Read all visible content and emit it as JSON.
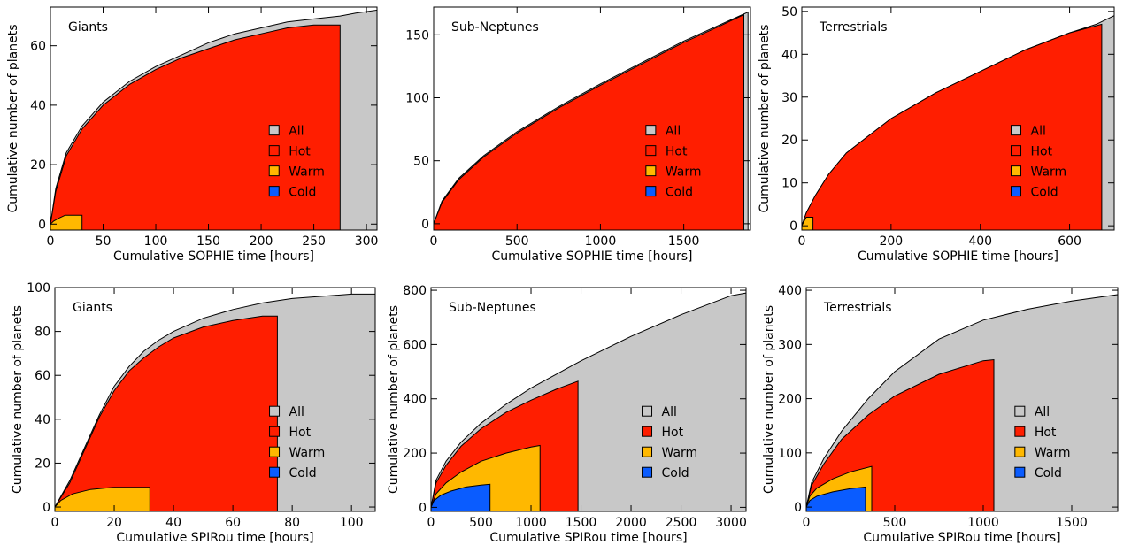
{
  "colors": {
    "all": "#c8c8c8",
    "hot": "#ff1e00",
    "warm": "#ffb800",
    "cold": "#0a5cff",
    "frame": "#000000"
  },
  "legend_labels": [
    "All",
    "Hot",
    "Warm",
    "Cold"
  ],
  "chart_data": [
    {
      "type": "area",
      "panel_title": "Giants",
      "xlabel": "Cumulative SOPHIE time [hours]",
      "ylabel": "Cumulative number of planets",
      "xlim": [
        0,
        310
      ],
      "ylim": [
        -2,
        73
      ],
      "legend_position": "lower-right",
      "xticks": [
        0,
        50,
        100,
        150,
        200,
        250,
        300
      ],
      "yticks": [
        0,
        20,
        40,
        60
      ],
      "series": [
        {
          "name": "All",
          "x_end": 310,
          "points": [
            [
              0,
              0
            ],
            [
              5,
              12
            ],
            [
              15,
              24
            ],
            [
              30,
              33
            ],
            [
              50,
              41
            ],
            [
              75,
              48
            ],
            [
              100,
              53
            ],
            [
              125,
              57
            ],
            [
              150,
              61
            ],
            [
              175,
              64
            ],
            [
              200,
              66
            ],
            [
              225,
              68
            ],
            [
              250,
              69
            ],
            [
              275,
              70
            ],
            [
              290,
              71
            ],
            [
              310,
              72
            ]
          ]
        },
        {
          "name": "Hot",
          "x_end": 275,
          "points": [
            [
              0,
              0
            ],
            [
              5,
              11
            ],
            [
              15,
              23
            ],
            [
              30,
              32
            ],
            [
              50,
              40
            ],
            [
              75,
              47
            ],
            [
              100,
              52
            ],
            [
              125,
              56
            ],
            [
              150,
              59
            ],
            [
              175,
              62
            ],
            [
              200,
              64
            ],
            [
              225,
              66
            ],
            [
              250,
              67
            ],
            [
              275,
              67
            ]
          ]
        },
        {
          "name": "Warm",
          "x_end": 30,
          "points": [
            [
              0,
              0
            ],
            [
              3,
              1
            ],
            [
              8,
              2
            ],
            [
              14,
              3
            ],
            [
              30,
              3
            ]
          ]
        }
      ]
    },
    {
      "type": "area",
      "panel_title": "Sub-Neptunes",
      "xlabel": "Cumulative SOPHIE time [hours]",
      "ylabel": "",
      "xlim": [
        0,
        1900
      ],
      "ylim": [
        -5,
        172
      ],
      "legend_position": "lower-right",
      "xticks": [
        0,
        500,
        1000,
        1500
      ],
      "yticks": [
        0,
        50,
        100,
        150
      ],
      "series": [
        {
          "name": "All",
          "x_end": 1885,
          "points": [
            [
              0,
              0
            ],
            [
              50,
              18
            ],
            [
              150,
              36
            ],
            [
              300,
              54
            ],
            [
              500,
              73
            ],
            [
              750,
              93
            ],
            [
              1000,
              111
            ],
            [
              1250,
              128
            ],
            [
              1500,
              145
            ],
            [
              1700,
              157
            ],
            [
              1885,
              168
            ]
          ]
        },
        {
          "name": "Hot",
          "x_end": 1860,
          "points": [
            [
              0,
              0
            ],
            [
              50,
              17
            ],
            [
              150,
              35
            ],
            [
              300,
              53
            ],
            [
              500,
              72
            ],
            [
              750,
              92
            ],
            [
              1000,
              110
            ],
            [
              1250,
              127
            ],
            [
              1500,
              144
            ],
            [
              1700,
              156
            ],
            [
              1860,
              166
            ]
          ]
        }
      ]
    },
    {
      "type": "area",
      "panel_title": "Terrestrials",
      "xlabel": "Cumulative SOPHIE time [hours]",
      "ylabel": "Cumulative number of planets",
      "xlim": [
        0,
        700
      ],
      "ylim": [
        -1,
        51
      ],
      "legend_position": "lower-right",
      "xticks": [
        0,
        200,
        400,
        600
      ],
      "yticks": [
        0,
        10,
        20,
        30,
        40,
        50
      ],
      "series": [
        {
          "name": "All",
          "x_end": 700,
          "points": [
            [
              0,
              0
            ],
            [
              10,
              3
            ],
            [
              30,
              7
            ],
            [
              60,
              12
            ],
            [
              100,
              17
            ],
            [
              150,
              21
            ],
            [
              200,
              25
            ],
            [
              300,
              31
            ],
            [
              400,
              36
            ],
            [
              500,
              41
            ],
            [
              600,
              45
            ],
            [
              660,
              47
            ],
            [
              700,
              49
            ]
          ]
        },
        {
          "name": "Hot",
          "x_end": 672,
          "points": [
            [
              0,
              0
            ],
            [
              10,
              3
            ],
            [
              30,
              7
            ],
            [
              60,
              12
            ],
            [
              100,
              17
            ],
            [
              150,
              21
            ],
            [
              200,
              25
            ],
            [
              300,
              31
            ],
            [
              400,
              36
            ],
            [
              500,
              41
            ],
            [
              600,
              45
            ],
            [
              672,
              47
            ]
          ]
        },
        {
          "name": "Warm",
          "x_end": 25,
          "points": [
            [
              0,
              0
            ],
            [
              5,
              1
            ],
            [
              10,
              2
            ],
            [
              25,
              2
            ]
          ]
        }
      ]
    },
    {
      "type": "area",
      "panel_title": "Giants",
      "xlabel": "Cumulative SPIRou time [hours]",
      "ylabel": "Cumulative number of planets",
      "xlim": [
        0,
        108
      ],
      "ylim": [
        -2,
        100
      ],
      "legend_position": "lower-right",
      "xticks": [
        0,
        20,
        40,
        60,
        80,
        100
      ],
      "yticks": [
        0,
        20,
        40,
        60,
        80,
        100
      ],
      "series": [
        {
          "name": "All",
          "x_end": 108,
          "points": [
            [
              0,
              0
            ],
            [
              5,
              12
            ],
            [
              10,
              27
            ],
            [
              15,
              42
            ],
            [
              20,
              55
            ],
            [
              25,
              64
            ],
            [
              30,
              71
            ],
            [
              35,
              76
            ],
            [
              40,
              80
            ],
            [
              50,
              86
            ],
            [
              60,
              90
            ],
            [
              70,
              93
            ],
            [
              80,
              95
            ],
            [
              90,
              96
            ],
            [
              100,
              97
            ],
            [
              108,
              97
            ]
          ]
        },
        {
          "name": "Hot",
          "x_end": 75,
          "points": [
            [
              0,
              0
            ],
            [
              5,
              11
            ],
            [
              10,
              26
            ],
            [
              15,
              41
            ],
            [
              20,
              53
            ],
            [
              25,
              62
            ],
            [
              30,
              68
            ],
            [
              35,
              73
            ],
            [
              40,
              77
            ],
            [
              50,
              82
            ],
            [
              60,
              85
            ],
            [
              70,
              87
            ],
            [
              75,
              87
            ]
          ]
        },
        {
          "name": "Warm",
          "x_end": 32,
          "points": [
            [
              0,
              0
            ],
            [
              2,
              3
            ],
            [
              6,
              6
            ],
            [
              12,
              8
            ],
            [
              20,
              9
            ],
            [
              32,
              9
            ]
          ]
        }
      ]
    },
    {
      "type": "area",
      "panel_title": "Sub-Neptunes",
      "xlabel": "Cumulative SPIRou time [hours]",
      "ylabel": "Cumulative number of planets",
      "xlim": [
        0,
        3150
      ],
      "ylim": [
        -15,
        810
      ],
      "legend_position": "lower-right",
      "xticks": [
        0,
        500,
        1000,
        1500,
        2000,
        2500,
        3000
      ],
      "yticks": [
        0,
        200,
        400,
        600,
        800
      ],
      "series": [
        {
          "name": "All",
          "x_end": 3150,
          "points": [
            [
              0,
              0
            ],
            [
              50,
              100
            ],
            [
              150,
              170
            ],
            [
              300,
              240
            ],
            [
              500,
              310
            ],
            [
              750,
              380
            ],
            [
              1000,
              440
            ],
            [
              1500,
              540
            ],
            [
              2000,
              630
            ],
            [
              2500,
              710
            ],
            [
              3000,
              780
            ],
            [
              3150,
              790
            ]
          ]
        },
        {
          "name": "Hot",
          "x_end": 1470,
          "points": [
            [
              0,
              0
            ],
            [
              50,
              90
            ],
            [
              150,
              155
            ],
            [
              300,
              225
            ],
            [
              500,
              290
            ],
            [
              750,
              350
            ],
            [
              1000,
              395
            ],
            [
              1250,
              435
            ],
            [
              1470,
              465
            ]
          ]
        },
        {
          "name": "Warm",
          "x_end": 1090,
          "points": [
            [
              0,
              0
            ],
            [
              50,
              50
            ],
            [
              150,
              90
            ],
            [
              300,
              130
            ],
            [
              500,
              170
            ],
            [
              750,
              200
            ],
            [
              1000,
              222
            ],
            [
              1090,
              228
            ]
          ]
        },
        {
          "name": "Cold",
          "x_end": 590,
          "points": [
            [
              0,
              0
            ],
            [
              30,
              25
            ],
            [
              100,
              45
            ],
            [
              200,
              60
            ],
            [
              350,
              75
            ],
            [
              500,
              82
            ],
            [
              590,
              85
            ]
          ]
        }
      ]
    },
    {
      "type": "area",
      "panel_title": "Terrestrials",
      "xlabel": "Cumulative SPIRou time [hours]",
      "ylabel": "Cumulative number of planets",
      "xlim": [
        0,
        1760
      ],
      "ylim": [
        -8,
        405
      ],
      "legend_position": "lower-right",
      "xticks": [
        0,
        500,
        1000,
        1500
      ],
      "yticks": [
        0,
        100,
        200,
        300,
        400
      ],
      "series": [
        {
          "name": "All",
          "x_end": 1760,
          "points": [
            [
              0,
              0
            ],
            [
              30,
              45
            ],
            [
              100,
              90
            ],
            [
              200,
              140
            ],
            [
              350,
              200
            ],
            [
              500,
              250
            ],
            [
              750,
              310
            ],
            [
              1000,
              345
            ],
            [
              1250,
              365
            ],
            [
              1500,
              380
            ],
            [
              1760,
              392
            ]
          ]
        },
        {
          "name": "Hot",
          "x_end": 1060,
          "points": [
            [
              0,
              0
            ],
            [
              30,
              40
            ],
            [
              100,
              80
            ],
            [
              200,
              125
            ],
            [
              350,
              170
            ],
            [
              500,
              205
            ],
            [
              750,
              245
            ],
            [
              1000,
              270
            ],
            [
              1060,
              272
            ]
          ]
        },
        {
          "name": "Warm",
          "x_end": 370,
          "points": [
            [
              0,
              0
            ],
            [
              20,
              20
            ],
            [
              60,
              35
            ],
            [
              150,
              52
            ],
            [
              250,
              65
            ],
            [
              370,
              75
            ]
          ]
        },
        {
          "name": "Cold",
          "x_end": 335,
          "points": [
            [
              0,
              0
            ],
            [
              20,
              12
            ],
            [
              60,
              20
            ],
            [
              150,
              28
            ],
            [
              250,
              34
            ],
            [
              335,
              37
            ]
          ]
        }
      ]
    }
  ]
}
